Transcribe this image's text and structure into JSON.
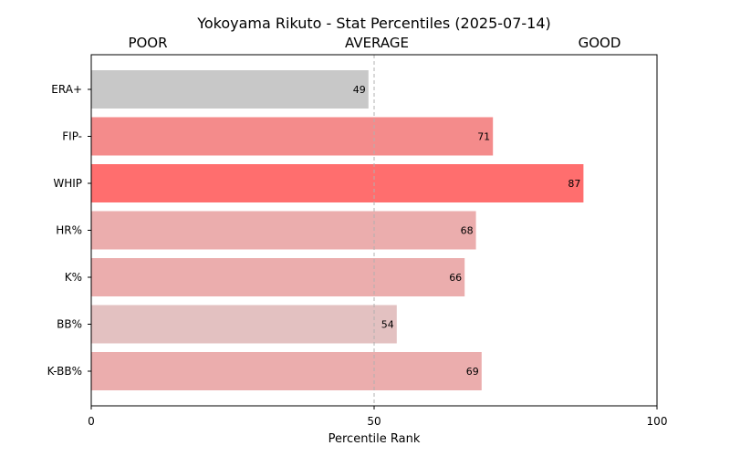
{
  "chart_data": {
    "type": "bar",
    "orientation": "horizontal",
    "title": "Yokoyama Rikuto - Stat Percentiles (2025-07-14)",
    "xlabel": "Percentile Rank",
    "ylabel": "",
    "xlim": [
      0,
      100
    ],
    "xticks": [
      0,
      50,
      100
    ],
    "reference_line": 50,
    "grid": false,
    "zone_labels": [
      "POOR",
      "AVERAGE",
      "GOOD"
    ],
    "categories": [
      "ERA+",
      "FIP-",
      "WHIP",
      "HR%",
      "K%",
      "BB%",
      "K-BB%"
    ],
    "values": [
      49,
      71,
      87,
      68,
      66,
      54,
      69
    ],
    "colors": [
      "#c8c8c8",
      "#f48b8b",
      "#ff6e6e",
      "#ebadad",
      "#ebadad",
      "#e3c1c1",
      "#ebadad"
    ]
  }
}
